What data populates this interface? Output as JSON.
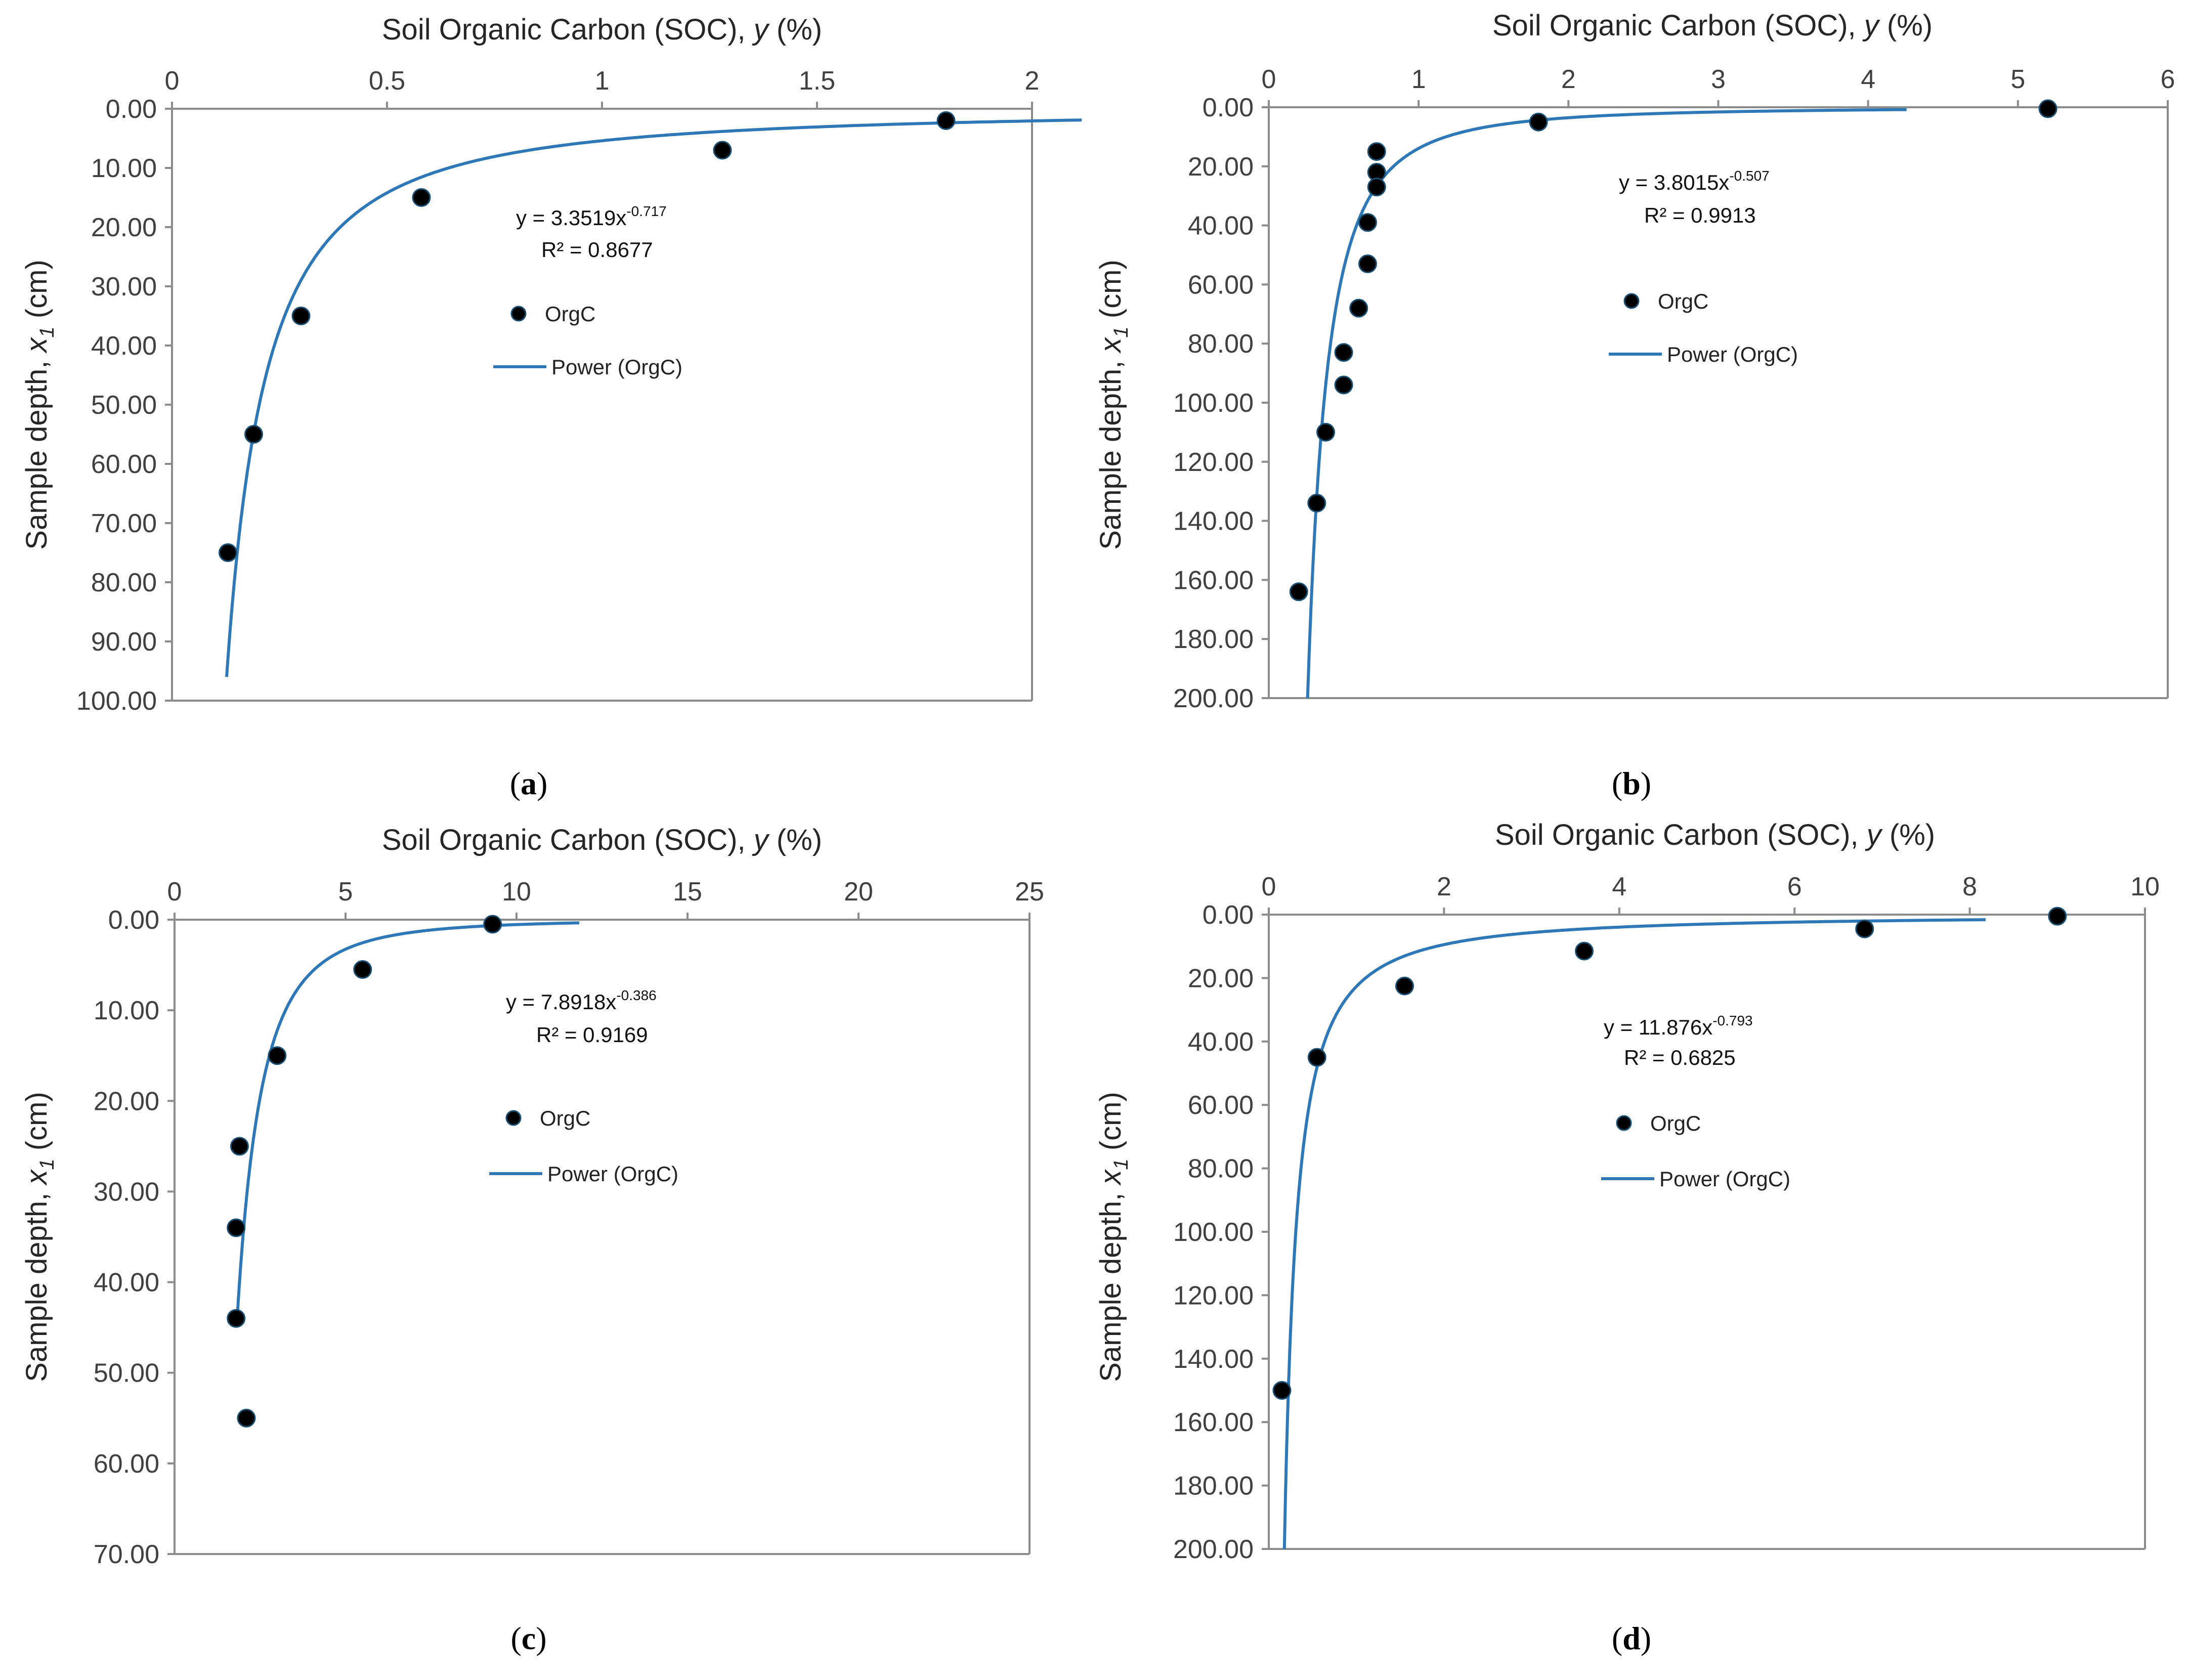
{
  "chart_data": [
    {
      "type": "scatter",
      "panel": "a",
      "caption_letter": "a",
      "xlabel": "Soil Organic Carbon (SOC),",
      "xlabel_var": "y",
      "xlabel_unit": "(%)",
      "ylabel": "Sample depth,",
      "ylabel_var": "x",
      "ylabel_sub": "1",
      "ylabel_unit": "(cm)",
      "xlim": [
        0,
        2
      ],
      "xticks": [
        0,
        0.5,
        1,
        1.5,
        2
      ],
      "xtick_labels": [
        "0",
        "0.5",
        "1",
        "1.5",
        "2"
      ],
      "ylim": [
        0,
        100
      ],
      "yticks": [
        0,
        10,
        20,
        30,
        40,
        50,
        60,
        70,
        80,
        90,
        100
      ],
      "ytick_labels": [
        "0.00",
        "10.00",
        "20.00",
        "30.00",
        "40.00",
        "50.00",
        "60.00",
        "70.00",
        "80.00",
        "90.00",
        "100.00"
      ],
      "y_inverted": true,
      "series": [
        {
          "name": "OrgC",
          "kind": "points",
          "x": [
            1.8,
            1.28,
            0.58,
            0.3,
            0.19,
            0.13
          ],
          "y": [
            2,
            7,
            15,
            35,
            55,
            75
          ]
        },
        {
          "name": "Power (OrgC)",
          "kind": "fit",
          "a": 3.3519,
          "b": -0.717,
          "depth_range": [
            1.9,
            96
          ]
        }
      ],
      "equation": {
        "prefix": "y = 3.3519x",
        "exponent": "-0.717",
        "r2": "R² = 0.8677"
      },
      "legend": {
        "points": "OrgC",
        "line": "Power (OrgC)"
      }
    },
    {
      "type": "scatter",
      "panel": "b",
      "caption_letter": "b",
      "xlabel": "Soil Organic Carbon (SOC),",
      "xlabel_var": "y",
      "xlabel_unit": "(%)",
      "ylabel": "Sample depth,",
      "ylabel_var": "x",
      "ylabel_sub": "1",
      "ylabel_unit": "(cm)",
      "xlim": [
        0,
        6
      ],
      "xticks": [
        0,
        1,
        2,
        3,
        4,
        5,
        6
      ],
      "xtick_labels": [
        "0",
        "1",
        "2",
        "3",
        "4",
        "5",
        "6"
      ],
      "ylim": [
        0,
        200
      ],
      "yticks": [
        0,
        20,
        40,
        60,
        80,
        100,
        120,
        140,
        160,
        180,
        200
      ],
      "ytick_labels": [
        "0.00",
        "20.00",
        "40.00",
        "60.00",
        "80.00",
        "100.00",
        "120.00",
        "140.00",
        "160.00",
        "180.00",
        "200.00"
      ],
      "y_inverted": true,
      "series": [
        {
          "name": "OrgC",
          "kind": "points",
          "x": [
            5.2,
            1.8,
            0.72,
            0.72,
            0.72,
            0.66,
            0.66,
            0.6,
            0.5,
            0.5,
            0.38,
            0.32,
            0.2
          ],
          "y": [
            0.5,
            5,
            15,
            22,
            27,
            39,
            53,
            68,
            83,
            94,
            110,
            134,
            164
          ]
        },
        {
          "name": "Power (OrgC)",
          "kind": "fit",
          "a": 3.8015,
          "b": -0.507,
          "depth_range": [
            0.8,
            200
          ]
        }
      ],
      "equation": {
        "prefix": "y = 3.8015x",
        "exponent": "-0.507",
        "r2": "R² = 0.9913"
      },
      "legend": {
        "points": "OrgC",
        "line": "Power (OrgC)"
      }
    },
    {
      "type": "scatter",
      "panel": "c",
      "caption_letter": "c",
      "xlabel": "Soil Organic Carbon (SOC),",
      "xlabel_var": "y",
      "xlabel_unit": "(%)",
      "ylabel": "Sample depth,",
      "ylabel_var": "x",
      "ylabel_sub": "1",
      "ylabel_unit": "(cm)",
      "xlim": [
        0,
        25
      ],
      "xticks": [
        0,
        5,
        10,
        15,
        20,
        25
      ],
      "xtick_labels": [
        "0",
        "5",
        "10",
        "15",
        "20",
        "25"
      ],
      "ylim": [
        0,
        70
      ],
      "yticks": [
        0,
        10,
        20,
        30,
        40,
        50,
        60,
        70
      ],
      "ytick_labels": [
        "0.00",
        "10.00",
        "20.00",
        "30.00",
        "40.00",
        "50.00",
        "60.00",
        "70.00"
      ],
      "y_inverted": true,
      "series": [
        {
          "name": "OrgC",
          "kind": "points",
          "x": [
            9.3,
            5.5,
            3.0,
            1.9,
            1.8,
            1.8,
            2.1
          ],
          "y": [
            0.5,
            5.5,
            15,
            25,
            34,
            44,
            55
          ]
        },
        {
          "name": "Power (OrgC)",
          "kind": "fit",
          "a": 7.8918,
          "b": -0.386,
          "depth_range": [
            0.35,
            44
          ]
        }
      ],
      "equation": {
        "prefix": "y = 7.8918x",
        "exponent": "-0.386",
        "r2": "R² = 0.9169"
      },
      "legend": {
        "points": "OrgC",
        "line": "Power (OrgC)"
      }
    },
    {
      "type": "scatter",
      "panel": "d",
      "caption_letter": "d",
      "xlabel": "Soil Organic Carbon (SOC),",
      "xlabel_var": "y",
      "xlabel_unit": "(%)",
      "ylabel": "Sample depth,",
      "ylabel_var": "x",
      "ylabel_sub": "1",
      "ylabel_unit": "(cm)",
      "xlim": [
        0,
        10
      ],
      "xticks": [
        0,
        2,
        4,
        6,
        8,
        10
      ],
      "xtick_labels": [
        "0",
        "2",
        "4",
        "6",
        "8",
        "10"
      ],
      "ylim": [
        0,
        200
      ],
      "yticks": [
        0,
        20,
        40,
        60,
        80,
        100,
        120,
        140,
        160,
        180,
        200
      ],
      "ytick_labels": [
        "0.00",
        "20.00",
        "40.00",
        "60.00",
        "80.00",
        "100.00",
        "120.00",
        "140.00",
        "160.00",
        "180.00",
        "200.00"
      ],
      "y_inverted": true,
      "series": [
        {
          "name": "OrgC",
          "kind": "points",
          "x": [
            9.0,
            6.8,
            3.6,
            1.55,
            0.55,
            0.15
          ],
          "y": [
            0.5,
            4.5,
            11.5,
            22.5,
            45,
            150
          ]
        },
        {
          "name": "Power (OrgC)",
          "kind": "fit",
          "a": 11.876,
          "b": -0.793,
          "depth_range": [
            1.6,
            200
          ]
        }
      ],
      "equation": {
        "prefix": "y = 11.876x",
        "exponent": "-0.793",
        "r2": "R² = 0.6825"
      },
      "legend": {
        "points": "OrgC",
        "line": "Power (OrgC)"
      }
    }
  ]
}
